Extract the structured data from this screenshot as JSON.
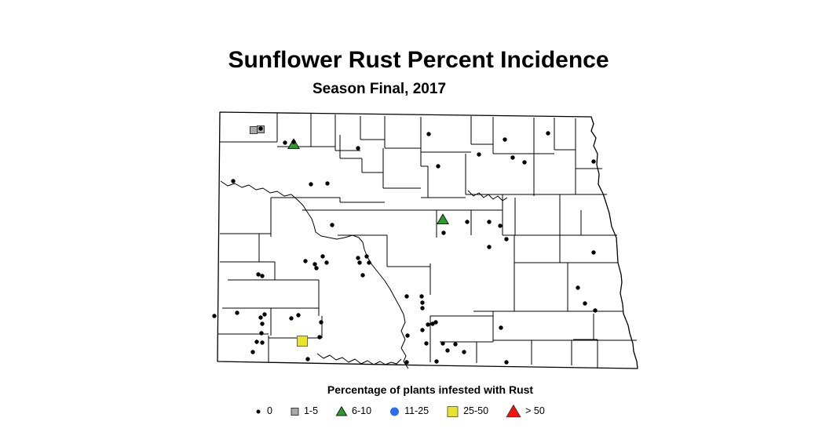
{
  "title": "Sunflower Rust Percent Incidence",
  "subtitle": "Season Final, 2017",
  "legend": {
    "title": "Percentage of plants infested with Rust",
    "items": [
      {
        "label": "0",
        "marker": "dot",
        "color": "#000000",
        "stroke": "#000000",
        "legend_size": 5,
        "map_size": 5.4
      },
      {
        "label": "1-5",
        "marker": "square",
        "color": "#a9a9a9",
        "stroke": "#3a3a3a",
        "legend_size": 9,
        "map_size": 9
      },
      {
        "label": "6-10",
        "marker": "triangle",
        "color": "#2e9b2e",
        "stroke": "#1a1a1a",
        "legend_size": 12,
        "map_size": 13
      },
      {
        "label": "11-25",
        "marker": "circle",
        "color": "#2a6fe8",
        "stroke": "#2a6fe8",
        "legend_size": 11,
        "map_size": 11
      },
      {
        "label": "25-50",
        "marker": "square",
        "color": "#e8e42c",
        "stroke": "#6b6b49",
        "legend_size": 13,
        "map_size": 13
      },
      {
        "label": "> 50",
        "marker": "triangle",
        "color": "#fa0f0f",
        "stroke": "#3a3a3a",
        "legend_size": 16,
        "map_size": 16
      }
    ]
  },
  "map": {
    "region": "North Dakota county map",
    "points": {
      "0": [
        [
          332,
          164
        ],
        [
          363,
          182
        ],
        [
          374,
          181
        ],
        [
          456,
          189
        ],
        [
          546,
          171
        ],
        [
          558,
          212
        ],
        [
          297,
          231
        ],
        [
          396,
          235
        ],
        [
          417,
          234
        ],
        [
          423,
          287
        ],
        [
          610,
          197
        ],
        [
          643,
          178
        ],
        [
          653,
          201
        ],
        [
          668,
          207
        ],
        [
          698,
          170
        ],
        [
          756,
          206
        ],
        [
          595,
          283
        ],
        [
          623,
          283
        ],
        [
          637,
          288
        ],
        [
          565,
          297
        ],
        [
          645,
          305
        ],
        [
          623,
          315
        ],
        [
          756,
          322
        ],
        [
          736,
          367
        ],
        [
          745,
          387
        ],
        [
          758,
          396
        ],
        [
          456,
          329
        ],
        [
          467,
          327
        ],
        [
          458,
          335
        ],
        [
          470,
          335
        ],
        [
          462,
          351
        ],
        [
          518,
          378
        ],
        [
          537,
          378
        ],
        [
          538,
          386
        ],
        [
          538,
          393
        ],
        [
          389,
          333
        ],
        [
          411,
          327
        ],
        [
          416,
          335
        ],
        [
          401,
          337
        ],
        [
          403,
          342
        ],
        [
          329,
          350
        ],
        [
          334,
          352
        ],
        [
          273,
          403
        ],
        [
          302,
          399
        ],
        [
          332,
          405
        ],
        [
          337,
          401
        ],
        [
          334,
          413
        ],
        [
          333,
          425
        ],
        [
          327,
          436
        ],
        [
          334,
          437
        ],
        [
          322,
          449
        ],
        [
          371,
          406
        ],
        [
          380,
          402
        ],
        [
          409,
          411
        ],
        [
          407,
          430
        ],
        [
          392,
          458
        ],
        [
          545,
          414
        ],
        [
          551,
          413
        ],
        [
          555,
          411
        ],
        [
          538,
          421
        ],
        [
          519,
          428
        ],
        [
          638,
          418
        ],
        [
          543,
          438
        ],
        [
          564,
          438
        ],
        [
          580,
          439
        ],
        [
          570,
          447
        ],
        [
          591,
          449
        ],
        [
          518,
          462
        ],
        [
          556,
          461
        ],
        [
          645,
          462
        ]
      ],
      "1-5": [
        [
          323,
          166
        ],
        [
          332,
          165
        ]
      ],
      "6-10": [
        [
          374,
          184
        ],
        [
          564,
          280
        ]
      ],
      "11-25": [],
      "25-50": [
        [
          385,
          435
        ]
      ],
      "> 50": []
    }
  }
}
